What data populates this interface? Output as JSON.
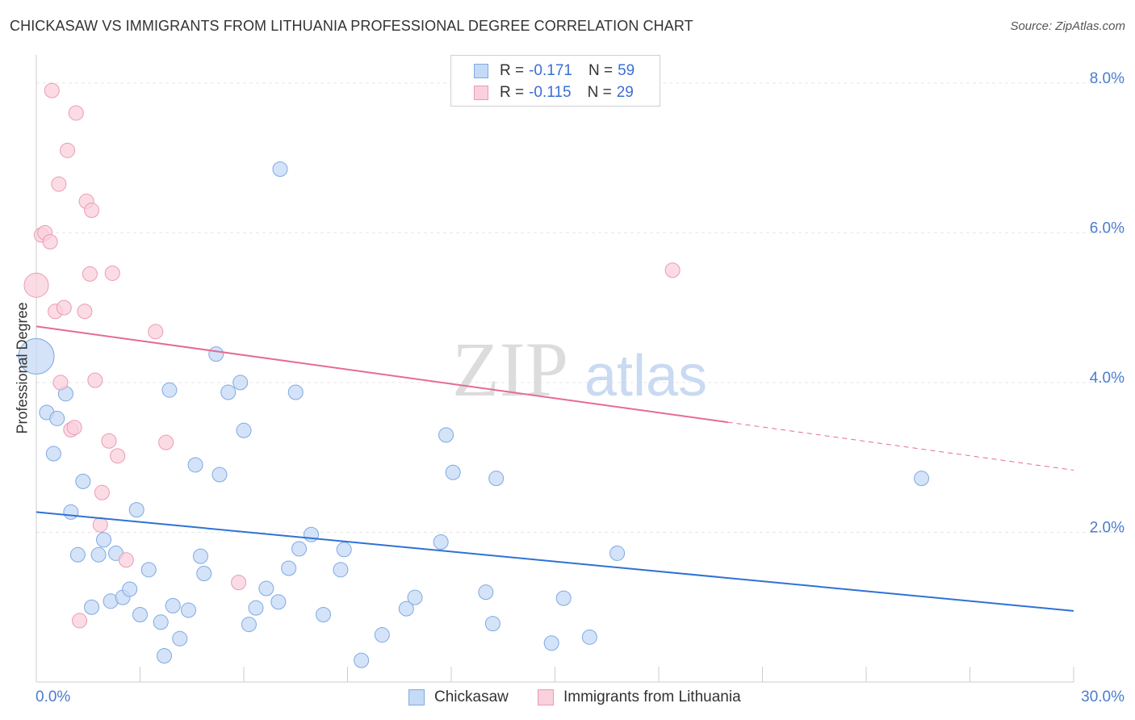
{
  "header": {
    "title": "CHICKASAW VS IMMIGRANTS FROM LITHUANIA PROFESSIONAL DEGREE CORRELATION CHART",
    "source": "Source: ZipAtlas.com"
  },
  "watermark": {
    "zip": "ZIP",
    "atlas": "atlas"
  },
  "legend": {
    "rows": [
      {
        "r_label": "R =",
        "r_value": "-0.171",
        "n_label": "N =",
        "n_value": "59",
        "color": "#a8c8f0",
        "stroke": "#6a9de0"
      },
      {
        "r_label": "R =",
        "r_value": "-0.115",
        "n_label": "N =",
        "n_value": "29",
        "color": "#f8c0d0",
        "stroke": "#e890aa"
      }
    ]
  },
  "bottom_legend": {
    "series1": "Chickasaw",
    "series2": "Immigrants from Lithuania"
  },
  "colors": {
    "blue_fill": "#c5daf5",
    "blue_stroke": "#7ea9e4",
    "blue_line": "#2f72d4",
    "pink_fill": "#f9d0dc",
    "pink_stroke": "#eb9ab4",
    "pink_line": "#e56b95",
    "tick_label": "#4a7cd0",
    "grid": "#e6e6e6"
  },
  "chart_data": {
    "type": "scatter",
    "title": "CHICKASAW VS IMMIGRANTS FROM LITHUANIA PROFESSIONAL DEGREE CORRELATION CHART",
    "xlabel": "",
    "ylabel": "Professional Degree",
    "xlim": [
      0,
      30
    ],
    "ylim": [
      0,
      8.3
    ],
    "x_tick_labels": [
      "0.0%",
      "30.0%"
    ],
    "y_ticks": [
      2,
      4,
      6,
      8
    ],
    "y_tick_labels": [
      "2.0%",
      "4.0%",
      "6.0%",
      "8.0%"
    ],
    "grid": true,
    "legend_position": "top-center",
    "series": [
      {
        "name": "Chickasaw",
        "r": -0.171,
        "n": 59,
        "trend": {
          "x0": 0,
          "y0": 2.27,
          "x1": 30,
          "y1": 0.95,
          "dashed_from": null
        },
        "points": [
          [
            0.0,
            4.35,
            22
          ],
          [
            0.3,
            3.6,
            9
          ],
          [
            0.5,
            3.05,
            9
          ],
          [
            0.6,
            3.52,
            9
          ],
          [
            0.85,
            3.85,
            9
          ],
          [
            1.0,
            2.27,
            9
          ],
          [
            1.2,
            1.7,
            9
          ],
          [
            1.35,
            2.68,
            9
          ],
          [
            1.6,
            1.0,
            9
          ],
          [
            1.8,
            1.7,
            9
          ],
          [
            1.95,
            1.9,
            9
          ],
          [
            2.15,
            1.08,
            9
          ],
          [
            2.3,
            1.72,
            9
          ],
          [
            2.5,
            1.13,
            9
          ],
          [
            2.7,
            1.24,
            9
          ],
          [
            2.9,
            2.3,
            9
          ],
          [
            3.0,
            0.9,
            9
          ],
          [
            3.25,
            1.5,
            9
          ],
          [
            3.6,
            0.8,
            9
          ],
          [
            3.7,
            0.35,
            9
          ],
          [
            3.85,
            3.9,
            9
          ],
          [
            3.95,
            1.02,
            9
          ],
          [
            4.15,
            0.58,
            9
          ],
          [
            4.4,
            0.96,
            9
          ],
          [
            4.6,
            2.9,
            9
          ],
          [
            4.75,
            1.68,
            9
          ],
          [
            4.85,
            1.45,
            9
          ],
          [
            5.2,
            4.38,
            9
          ],
          [
            5.3,
            2.77,
            9
          ],
          [
            5.55,
            3.87,
            9
          ],
          [
            5.9,
            4.0,
            9
          ],
          [
            6.0,
            3.36,
            9
          ],
          [
            6.15,
            0.77,
            9
          ],
          [
            6.35,
            0.99,
            9
          ],
          [
            6.65,
            1.25,
            9
          ],
          [
            7.0,
            1.07,
            9
          ],
          [
            7.05,
            6.85,
            9
          ],
          [
            7.3,
            1.52,
            9
          ],
          [
            7.5,
            3.87,
            9
          ],
          [
            7.6,
            1.78,
            9
          ],
          [
            7.95,
            1.97,
            9
          ],
          [
            8.3,
            0.9,
            9
          ],
          [
            8.8,
            1.5,
            9
          ],
          [
            8.9,
            1.77,
            9
          ],
          [
            9.4,
            0.29,
            9
          ],
          [
            10.0,
            0.63,
            9
          ],
          [
            10.7,
            0.98,
            9
          ],
          [
            10.95,
            1.13,
            9
          ],
          [
            11.7,
            1.87,
            9
          ],
          [
            11.85,
            3.3,
            9
          ],
          [
            12.05,
            2.8,
            9
          ],
          [
            13.0,
            1.2,
            9
          ],
          [
            13.2,
            0.78,
            9
          ],
          [
            13.3,
            2.72,
            9
          ],
          [
            14.9,
            0.52,
            9
          ],
          [
            15.25,
            1.12,
            9
          ],
          [
            16.0,
            0.6,
            9
          ],
          [
            16.8,
            1.72,
            9
          ],
          [
            25.6,
            2.72,
            9
          ]
        ]
      },
      {
        "name": "Immigrants from Lithuania",
        "r": -0.115,
        "n": 29,
        "trend": {
          "x0": 0,
          "y0": 4.75,
          "x1": 30,
          "y1": 2.83,
          "dashed_from": 20.0
        },
        "points": [
          [
            0.0,
            5.3,
            15
          ],
          [
            0.15,
            5.97,
            9
          ],
          [
            0.25,
            6.0,
            9
          ],
          [
            0.4,
            5.88,
            9
          ],
          [
            0.45,
            7.9,
            9
          ],
          [
            0.55,
            4.95,
            9
          ],
          [
            0.65,
            6.65,
            9
          ],
          [
            0.7,
            4.0,
            9
          ],
          [
            0.8,
            5.0,
            9
          ],
          [
            0.9,
            7.1,
            9
          ],
          [
            1.0,
            3.37,
            9
          ],
          [
            1.1,
            3.4,
            9
          ],
          [
            1.15,
            7.6,
            9
          ],
          [
            1.25,
            0.82,
            9
          ],
          [
            1.4,
            4.95,
            9
          ],
          [
            1.45,
            6.42,
            9
          ],
          [
            1.55,
            5.45,
            9
          ],
          [
            1.6,
            6.3,
            9
          ],
          [
            1.7,
            4.03,
            9
          ],
          [
            1.9,
            2.53,
            9
          ],
          [
            1.85,
            2.1,
            9
          ],
          [
            2.1,
            3.22,
            9
          ],
          [
            2.2,
            5.46,
            9
          ],
          [
            2.35,
            3.02,
            9
          ],
          [
            2.6,
            1.63,
            9
          ],
          [
            3.45,
            4.68,
            9
          ],
          [
            3.75,
            3.2,
            9
          ],
          [
            5.85,
            1.33,
            9
          ],
          [
            18.4,
            5.5,
            9
          ]
        ]
      }
    ]
  }
}
